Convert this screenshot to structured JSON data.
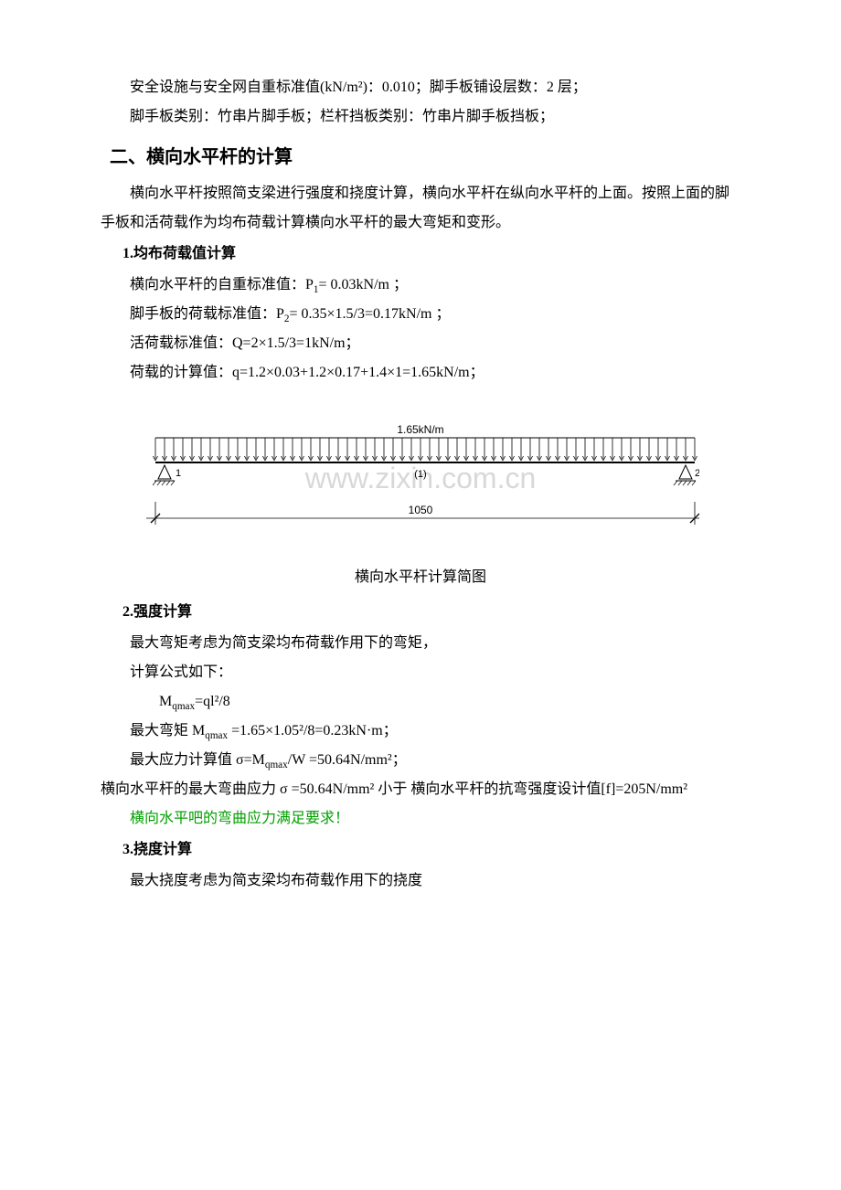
{
  "p1": "安全设施与安全网自重标准值(kN/m²)：0.010；脚手板铺设层数：2 层；",
  "p2": "脚手板类别：竹串片脚手板；栏杆挡板类别：竹串片脚手板挡板；",
  "sec2_title": "二、横向水平杆的计算",
  "sec2_p1": "横向水平杆按照简支梁进行强度和挠度计算，横向水平杆在纵向水平杆的上面。按照上面的脚手板和活荷载作为均布荷载计算横向水平杆的最大弯矩和变形。",
  "sub1_title": "1.均布荷载值计算",
  "sub1_l1_a": "横向水平杆的自重标准值：P",
  "sub1_l1_b": "= 0.03kN/m ；",
  "sub1_l2_a": "脚手板的荷载标准值：P",
  "sub1_l2_b": "= 0.35×1.5/3=0.17kN/m ；",
  "sub1_l3": "活荷载标准值：Q=2×1.5/3=1kN/m；",
  "sub1_l4": "荷载的计算值：q=1.2×0.03+1.2×0.17+1.4×1=1.65kN/m；",
  "diagram": {
    "load_label": "1.65kN/m",
    "span_label": "1050",
    "left_sup": "1",
    "right_sup": "2",
    "mid_label": "(1)",
    "watermark": "www.zixin.com.cn",
    "colors": {
      "line": "#000000",
      "watermark": "#d8d8d8"
    }
  },
  "caption": "横向水平杆计算简图",
  "sub2_title": "2.强度计算",
  "sub2_l1": "最大弯矩考虑为简支梁均布荷载作用下的弯矩，",
  "sub2_l2": "计算公式如下：",
  "sub2_formula_a": "M",
  "sub2_formula_b": "=ql²/8",
  "sub2_l3_a": "最大弯矩 M",
  "sub2_l3_b": " =1.65×1.05²/8=0.23kN·m；",
  "sub2_l4_a": "最大应力计算值 σ=M",
  "sub2_l4_b": "/W =50.64N/mm²；",
  "sub2_l5": "横向水平杆的最大弯曲应力 σ =50.64N/mm² 小于 横向水平杆的抗弯强度设计值[f]=205N/mm²",
  "sub2_green": "横向水平吧的弯曲应力满足要求！",
  "sub3_title": "3.挠度计算",
  "sub3_l1": "最大挠度考虑为简支梁均布荷载作用下的挠度",
  "subs": {
    "one": "1",
    "two": "2",
    "qmax": "qmax"
  }
}
